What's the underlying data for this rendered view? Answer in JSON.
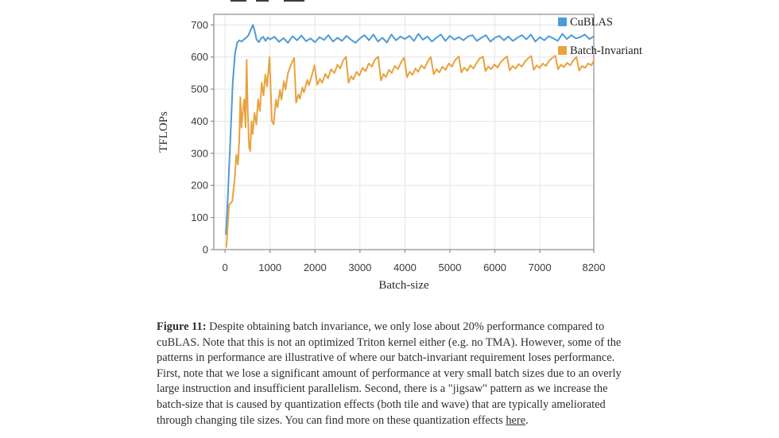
{
  "caption": {
    "prefix": "Figure 11:",
    "body": " Despite obtaining batch invariance, we only lose about 20% performance compared to cuBLAS. Note that this is not an optimized Triton kernel either (e.g. no TMA). However, some of the patterns in performance are illustrative of where our batch-invariant requirement loses performance. First, note that we lose a significant amount of performance at very small batch sizes due to an overly large instruction and insufficient parallelism. Second, there is a \"jigsaw\" pattern as we increase the batch-size that is caused by quantization effects (both tile and wave) that are typically ameliorated through changing tile sizes. You can find more on these quantization effects ",
    "link_text": "here",
    "suffix": "."
  },
  "chart_data": {
    "type": "line",
    "title": "",
    "xlabel": "Batch-size",
    "ylabel": "TFLOPs",
    "xlim": [
      -250,
      8200
    ],
    "ylim": [
      0,
      733
    ],
    "x_ticks": [
      0,
      1000,
      2000,
      3000,
      4000,
      5000,
      6000,
      7000,
      8200
    ],
    "y_ticks": [
      0,
      100,
      200,
      300,
      400,
      500,
      600,
      700
    ],
    "grid": true,
    "legend_position": "top-right",
    "colors": {
      "axis": "#8a8a8a",
      "grid": "#e5e5e5",
      "tick_text": "#3a3a3a",
      "label_text": "#2b2b2b"
    },
    "series": [
      {
        "name": "CuBLAS",
        "color": "#4E9BD8",
        "points": [
          [
            20,
            48
          ],
          [
            70,
            190
          ],
          [
            120,
            350
          ],
          [
            170,
            520
          ],
          [
            220,
            610
          ],
          [
            270,
            645
          ],
          [
            320,
            652
          ],
          [
            370,
            648
          ],
          [
            420,
            655
          ],
          [
            470,
            660
          ],
          [
            520,
            668
          ],
          [
            570,
            685
          ],
          [
            620,
            700
          ],
          [
            660,
            680
          ],
          [
            700,
            655
          ],
          [
            750,
            646
          ],
          [
            800,
            658
          ],
          [
            850,
            663
          ],
          [
            900,
            650
          ],
          [
            950,
            661
          ],
          [
            1000,
            655
          ],
          [
            1100,
            663
          ],
          [
            1200,
            647
          ],
          [
            1300,
            659
          ],
          [
            1400,
            644
          ],
          [
            1500,
            665
          ],
          [
            1600,
            652
          ],
          [
            1700,
            667
          ],
          [
            1800,
            649
          ],
          [
            1900,
            658
          ],
          [
            2000,
            646
          ],
          [
            2100,
            662
          ],
          [
            2200,
            653
          ],
          [
            2300,
            668
          ],
          [
            2400,
            648
          ],
          [
            2500,
            660
          ],
          [
            2600,
            650
          ],
          [
            2700,
            666
          ],
          [
            2800,
            654
          ],
          [
            2900,
            644
          ],
          [
            3000,
            658
          ],
          [
            3100,
            668
          ],
          [
            3200,
            652
          ],
          [
            3300,
            670
          ],
          [
            3400,
            648
          ],
          [
            3500,
            660
          ],
          [
            3600,
            645
          ],
          [
            3700,
            670
          ],
          [
            3800,
            652
          ],
          [
            3900,
            664
          ],
          [
            4000,
            656
          ],
          [
            4100,
            666
          ],
          [
            4200,
            650
          ],
          [
            4300,
            672
          ],
          [
            4400,
            654
          ],
          [
            4500,
            664
          ],
          [
            4600,
            648
          ],
          [
            4700,
            660
          ],
          [
            4800,
            670
          ],
          [
            4900,
            650
          ],
          [
            5000,
            666
          ],
          [
            5100,
            654
          ],
          [
            5200,
            662
          ],
          [
            5300,
            652
          ],
          [
            5400,
            664
          ],
          [
            5500,
            668
          ],
          [
            5600,
            650
          ],
          [
            5700,
            660
          ],
          [
            5800,
            668
          ],
          [
            5900,
            648
          ],
          [
            6000,
            660
          ],
          [
            6100,
            666
          ],
          [
            6200,
            652
          ],
          [
            6300,
            664
          ],
          [
            6400,
            650
          ],
          [
            6500,
            660
          ],
          [
            6600,
            668
          ],
          [
            6700,
            655
          ],
          [
            6800,
            670
          ],
          [
            6900,
            648
          ],
          [
            7000,
            662
          ],
          [
            7100,
            652
          ],
          [
            7200,
            665
          ],
          [
            7300,
            658
          ],
          [
            7400,
            650
          ],
          [
            7500,
            672
          ],
          [
            7600,
            656
          ],
          [
            7700,
            668
          ],
          [
            7800,
            658
          ],
          [
            7900,
            662
          ],
          [
            8000,
            670
          ],
          [
            8100,
            656
          ],
          [
            8200,
            664
          ]
        ]
      },
      {
        "name": "Batch-Invariant",
        "color": "#E9A23E",
        "points": [
          [
            30,
            8
          ],
          [
            60,
            75
          ],
          [
            90,
            140
          ],
          [
            160,
            150
          ],
          [
            210,
            215
          ],
          [
            250,
            295
          ],
          [
            285,
            265
          ],
          [
            315,
            340
          ],
          [
            340,
            475
          ],
          [
            365,
            380
          ],
          [
            395,
            432
          ],
          [
            425,
            468
          ],
          [
            455,
            381
          ],
          [
            480,
            591
          ],
          [
            505,
            430
          ],
          [
            535,
            319
          ],
          [
            560,
            307
          ],
          [
            590,
            400
          ],
          [
            615,
            360
          ],
          [
            655,
            426
          ],
          [
            695,
            390
          ],
          [
            735,
            468
          ],
          [
            775,
            432
          ],
          [
            815,
            520
          ],
          [
            855,
            480
          ],
          [
            895,
            545
          ],
          [
            935,
            508
          ],
          [
            990,
            600
          ],
          [
            1040,
            401
          ],
          [
            1080,
            390
          ],
          [
            1130,
            467
          ],
          [
            1165,
            443
          ],
          [
            1220,
            497
          ],
          [
            1255,
            467
          ],
          [
            1310,
            525
          ],
          [
            1345,
            499
          ],
          [
            1400,
            550
          ],
          [
            1455,
            572
          ],
          [
            1535,
            597
          ],
          [
            1580,
            458
          ],
          [
            1630,
            484
          ],
          [
            1665,
            470
          ],
          [
            1720,
            505
          ],
          [
            1755,
            490
          ],
          [
            1830,
            529
          ],
          [
            1865,
            512
          ],
          [
            1940,
            548
          ],
          [
            1990,
            574
          ],
          [
            2050,
            513
          ],
          [
            2110,
            532
          ],
          [
            2160,
            520
          ],
          [
            2230,
            547
          ],
          [
            2290,
            534
          ],
          [
            2360,
            562
          ],
          [
            2430,
            550
          ],
          [
            2500,
            576
          ],
          [
            2560,
            564
          ],
          [
            2630,
            590
          ],
          [
            2690,
            601
          ],
          [
            2745,
            520
          ],
          [
            2805,
            540
          ],
          [
            2855,
            530
          ],
          [
            2925,
            554
          ],
          [
            2985,
            542
          ],
          [
            3055,
            566
          ],
          [
            3125,
            556
          ],
          [
            3195,
            580
          ],
          [
            3265,
            570
          ],
          [
            3335,
            592
          ],
          [
            3405,
            601
          ],
          [
            3465,
            527
          ],
          [
            3525,
            547
          ],
          [
            3575,
            537
          ],
          [
            3645,
            560
          ],
          [
            3705,
            550
          ],
          [
            3775,
            572
          ],
          [
            3845,
            562
          ],
          [
            3915,
            584
          ],
          [
            3985,
            598
          ],
          [
            4045,
            537
          ],
          [
            4105,
            554
          ],
          [
            4165,
            544
          ],
          [
            4235,
            564
          ],
          [
            4295,
            554
          ],
          [
            4365,
            574
          ],
          [
            4435,
            564
          ],
          [
            4505,
            586
          ],
          [
            4575,
            600
          ],
          [
            4640,
            546
          ],
          [
            4705,
            562
          ],
          [
            4765,
            552
          ],
          [
            4835,
            570
          ],
          [
            4905,
            560
          ],
          [
            4975,
            580
          ],
          [
            5045,
            570
          ],
          [
            5115,
            590
          ],
          [
            5200,
            602
          ],
          [
            5255,
            552
          ],
          [
            5320,
            567
          ],
          [
            5385,
            557
          ],
          [
            5455,
            574
          ],
          [
            5525,
            564
          ],
          [
            5595,
            582
          ],
          [
            5665,
            596
          ],
          [
            5735,
            601
          ],
          [
            5790,
            556
          ],
          [
            5855,
            570
          ],
          [
            5920,
            562
          ],
          [
            5990,
            577
          ],
          [
            6060,
            567
          ],
          [
            6130,
            584
          ],
          [
            6200,
            594
          ],
          [
            6270,
            602
          ],
          [
            6330,
            558
          ],
          [
            6395,
            572
          ],
          [
            6460,
            564
          ],
          [
            6530,
            578
          ],
          [
            6600,
            570
          ],
          [
            6670,
            586
          ],
          [
            6740,
            596
          ],
          [
            6810,
            603
          ],
          [
            6865,
            560
          ],
          [
            6930,
            574
          ],
          [
            6995,
            566
          ],
          [
            7065,
            580
          ],
          [
            7135,
            572
          ],
          [
            7205,
            588
          ],
          [
            7275,
            597
          ],
          [
            7345,
            604
          ],
          [
            7405,
            562
          ],
          [
            7470,
            576
          ],
          [
            7535,
            568
          ],
          [
            7605,
            582
          ],
          [
            7675,
            574
          ],
          [
            7745,
            590
          ],
          [
            7815,
            600
          ],
          [
            7875,
            558
          ],
          [
            7940,
            572
          ],
          [
            8005,
            566
          ],
          [
            8075,
            580
          ],
          [
            8145,
            574
          ],
          [
            8200,
            589
          ]
        ]
      }
    ]
  }
}
